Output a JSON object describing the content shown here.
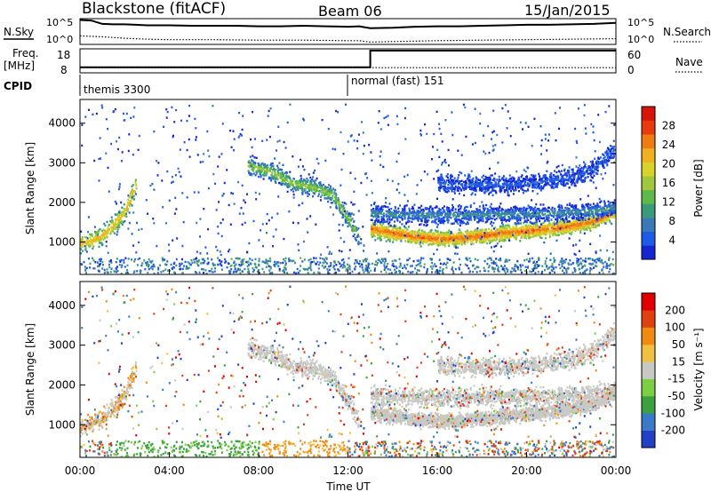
{
  "header": {
    "station": "Blackstone (fitACF)",
    "beam": "Beam 06",
    "date": "15/Jan/2015"
  },
  "chart_data": [
    {
      "type": "line",
      "name": "noise-panel",
      "left_labels": [
        "N.Sky"
      ],
      "right_labels": [
        "N.Search"
      ],
      "left_ticks": [
        "10^5",
        "10^0"
      ],
      "right_ticks": [
        "10^5",
        "10^0"
      ],
      "series": [
        {
          "name": "N.Sky",
          "style": "solid",
          "x": [
            0,
            0.5,
            1,
            1.5,
            2,
            2.5,
            3,
            4,
            5,
            6,
            7,
            8,
            9,
            10,
            11,
            12,
            12.5,
            13,
            14,
            15,
            16,
            17,
            18,
            19,
            20,
            21,
            22,
            23,
            24
          ],
          "y": [
            4.9,
            4.8,
            4.1,
            4.0,
            4.0,
            3.9,
            3.8,
            3.8,
            3.7,
            3.7,
            3.7,
            3.6,
            3.6,
            3.7,
            3.6,
            3.5,
            3.6,
            3.2,
            3.3,
            3.5,
            3.6,
            3.6,
            3.7,
            3.8,
            3.9,
            3.9,
            4.0,
            4.1,
            4.3
          ]
        },
        {
          "name": "N.Search",
          "style": "dotted",
          "x": [
            0,
            1,
            2,
            3,
            4,
            6,
            8,
            10,
            12,
            12.5,
            13,
            14,
            16,
            18,
            20,
            22,
            24
          ],
          "y": [
            1.6,
            1.4,
            1.1,
            0.9,
            0.8,
            0.8,
            0.7,
            0.7,
            0.6,
            0.6,
            0.3,
            0.4,
            0.6,
            0.7,
            0.8,
            0.9,
            1.0
          ]
        }
      ]
    },
    {
      "type": "line",
      "name": "freq-panel",
      "left_labels": [
        "Freq.",
        "[MHz]"
      ],
      "right_labels": [
        "Nave"
      ],
      "left_ticks": [
        "18",
        "8"
      ],
      "right_ticks": [
        "60",
        "0"
      ],
      "series": [
        {
          "name": "Freq",
          "style": "solid",
          "x": [
            0,
            13.0,
            13.0,
            24
          ],
          "y": [
            10.2,
            10.2,
            18,
            18
          ]
        },
        {
          "name": "Nave",
          "style": "dotted",
          "x": [
            0,
            24
          ],
          "y": [
            10,
            10
          ]
        }
      ]
    },
    {
      "type": "table",
      "name": "cpid-panel",
      "label": "CPID",
      "segments": [
        {
          "start": 0,
          "text": "themis 3300"
        },
        {
          "start": 12.0,
          "text": "normal (fast) 151"
        }
      ]
    },
    {
      "type": "heatmap",
      "name": "power-panel",
      "ylabel": "Slant Range [km]",
      "yticks": [
        1000,
        2000,
        3000,
        4000
      ],
      "ylim": [
        180,
        4600
      ],
      "colorbar": {
        "label": "Power [dB]",
        "ticks": [
          4,
          8,
          12,
          16,
          20,
          24,
          28
        ],
        "range": [
          0,
          32
        ],
        "colors": [
          "#1426d4",
          "#1e5ae8",
          "#3a78b8",
          "#3a9b7a",
          "#5fb84a",
          "#a0c83a",
          "#d8d22a",
          "#f0b020",
          "#f07a14",
          "#e83a0c",
          "#d8140a"
        ]
      },
      "scatter_bands": [
        {
          "x": [
            0,
            0.5,
            1.0,
            1.5,
            2.0,
            2.5
          ],
          "y": [
            1000,
            1050,
            1200,
            1450,
            1800,
            2500
          ],
          "power": 22
        },
        {
          "x": [
            7.5,
            8.5,
            9.5,
            10.5,
            11.3,
            12.0,
            12.5
          ],
          "y": [
            2950,
            2800,
            2500,
            2400,
            2200,
            1600,
            1100
          ],
          "power": 16
        },
        {
          "x": [
            13,
            14,
            15,
            16,
            17,
            18,
            19,
            20,
            21,
            22,
            23,
            24
          ],
          "y": [
            1350,
            1250,
            1150,
            1100,
            1120,
            1180,
            1250,
            1300,
            1350,
            1420,
            1550,
            1800
          ],
          "power": 26
        },
        {
          "x": [
            13,
            15,
            17,
            19,
            21,
            23,
            24
          ],
          "y": [
            1750,
            1700,
            1700,
            1720,
            1750,
            1800,
            1900
          ],
          "power": 10
        },
        {
          "x": [
            16,
            18,
            20,
            22,
            23,
            24
          ],
          "y": [
            2500,
            2450,
            2500,
            2650,
            2900,
            3400
          ],
          "power": 6
        }
      ]
    },
    {
      "type": "heatmap",
      "name": "velocity-panel",
      "ylabel": "Slant Range [km]",
      "xlabel": "Time UT",
      "xticks": [
        "00:00",
        "04:00",
        "08:00",
        "12:00",
        "16:00",
        "20:00",
        "00:00"
      ],
      "yticks": [
        1000,
        2000,
        3000,
        4000
      ],
      "ylim": [
        180,
        4600
      ],
      "colorbar": {
        "label": "Velocity [m s⁻¹]",
        "ticks": [
          200,
          100,
          50,
          15,
          -15,
          -50,
          -100,
          -200
        ],
        "colors": [
          "#2040c8",
          "#3a7ac8",
          "#3aa040",
          "#7ad040",
          "#c8c8c4",
          "#f0c040",
          "#f08a10",
          "#e04010",
          "#e00000"
        ]
      }
    }
  ]
}
